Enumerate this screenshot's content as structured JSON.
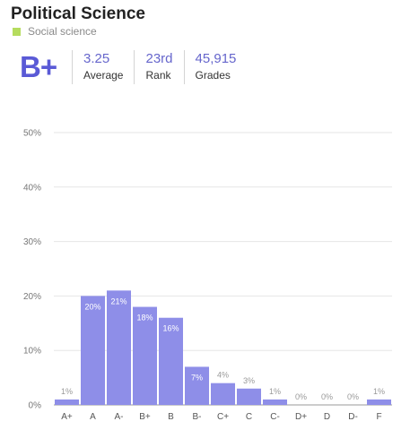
{
  "header": {
    "title": "Political Science",
    "category_label": "Social science",
    "category_color": "#b5dc5e",
    "grade": "B+",
    "stats": [
      {
        "value": "3.25",
        "label": "Average"
      },
      {
        "value": "23rd",
        "label": "Rank"
      },
      {
        "value": "45,915",
        "label": "Grades"
      }
    ]
  },
  "colors": {
    "bar": "#8e8ee8",
    "accent": "#5a5ad6"
  },
  "chart_data": {
    "type": "bar",
    "categories": [
      "A+",
      "A",
      "A-",
      "B+",
      "B",
      "B-",
      "C+",
      "C",
      "C-",
      "D+",
      "D",
      "D-",
      "F"
    ],
    "values": [
      1,
      20,
      21,
      18,
      16,
      7,
      4,
      3,
      1,
      0,
      0,
      0,
      1
    ],
    "data_labels": [
      "1%",
      "20%",
      "21%",
      "18%",
      "16%",
      "7%",
      "4%",
      "3%",
      "1%",
      "0%",
      "0%",
      "0%",
      "1%"
    ],
    "y_ticks": [
      0,
      10,
      20,
      30,
      40,
      50
    ],
    "y_tick_labels": [
      "0%",
      "10%",
      "20%",
      "30%",
      "40%",
      "50%"
    ],
    "ylim": [
      0,
      50
    ],
    "grid": true
  }
}
